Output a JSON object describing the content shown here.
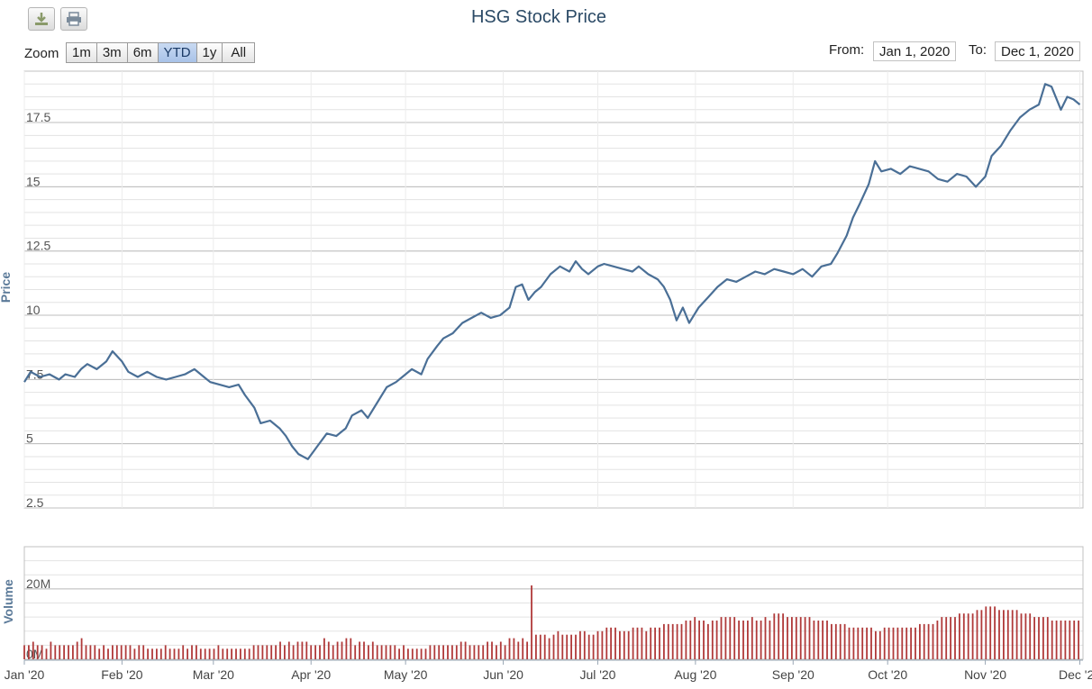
{
  "chart_title": "HSG Stock Price",
  "toolbar": {
    "download_icon": "download-icon",
    "print_icon": "print-icon"
  },
  "zoom": {
    "label": "Zoom",
    "buttons": [
      "1m",
      "3m",
      "6m",
      "YTD",
      "1y",
      "All"
    ],
    "active": "YTD"
  },
  "range": {
    "from_label": "From:",
    "from_value": "Jan 1, 2020",
    "to_label": "To:",
    "to_value": "Dec 1, 2020"
  },
  "colors": {
    "line": "#4a6f96",
    "bars": "#b03a3a",
    "grid": "#c8c8c8",
    "axis_title": "#5b7a99"
  },
  "chart_data": [
    {
      "type": "line",
      "ylabel": "Price",
      "ylim": [
        2.5,
        19.5
      ],
      "yticks": [
        2.5,
        5,
        7.5,
        10,
        12.5,
        15,
        17.5
      ],
      "ytick_labels": [
        "2.5",
        "5",
        "7.5",
        "10",
        "12.5",
        "15",
        "17.5"
      ],
      "xlabels": [
        "Jan '20",
        "Feb '20",
        "Mar '20",
        "Apr '20",
        "May '20",
        "Jun '20",
        "Jul '20",
        "Aug '20",
        "Sep '20",
        "Oct '20",
        "Nov '20",
        "Dec '20"
      ],
      "xlim": [
        "2020-01-01",
        "2020-12-02"
      ],
      "grid": true,
      "series": [
        {
          "points": [
            [
              "2020-01-01",
              7.4
            ],
            [
              "2020-01-03",
              7.8
            ],
            [
              "2020-01-06",
              7.6
            ],
            [
              "2020-01-09",
              7.7
            ],
            [
              "2020-01-12",
              7.5
            ],
            [
              "2020-01-14",
              7.7
            ],
            [
              "2020-01-17",
              7.6
            ],
            [
              "2020-01-19",
              7.9
            ],
            [
              "2020-01-21",
              8.1
            ],
            [
              "2020-01-24",
              7.9
            ],
            [
              "2020-01-27",
              8.2
            ],
            [
              "2020-01-29",
              8.6
            ],
            [
              "2020-02-01",
              8.2
            ],
            [
              "2020-02-03",
              7.8
            ],
            [
              "2020-02-06",
              7.6
            ],
            [
              "2020-02-09",
              7.8
            ],
            [
              "2020-02-12",
              7.6
            ],
            [
              "2020-02-15",
              7.5
            ],
            [
              "2020-02-18",
              7.6
            ],
            [
              "2020-02-21",
              7.7
            ],
            [
              "2020-02-24",
              7.9
            ],
            [
              "2020-02-27",
              7.6
            ],
            [
              "2020-02-29",
              7.4
            ],
            [
              "2020-03-03",
              7.3
            ],
            [
              "2020-03-06",
              7.2
            ],
            [
              "2020-03-09",
              7.3
            ],
            [
              "2020-03-11",
              6.9
            ],
            [
              "2020-03-14",
              6.4
            ],
            [
              "2020-03-16",
              5.8
            ],
            [
              "2020-03-19",
              5.9
            ],
            [
              "2020-03-22",
              5.6
            ],
            [
              "2020-03-24",
              5.3
            ],
            [
              "2020-03-26",
              4.9
            ],
            [
              "2020-03-28",
              4.6
            ],
            [
              "2020-03-31",
              4.4
            ],
            [
              "2020-04-03",
              4.9
            ],
            [
              "2020-04-06",
              5.4
            ],
            [
              "2020-04-09",
              5.3
            ],
            [
              "2020-04-12",
              5.6
            ],
            [
              "2020-04-14",
              6.1
            ],
            [
              "2020-04-17",
              6.3
            ],
            [
              "2020-04-19",
              6.0
            ],
            [
              "2020-04-22",
              6.6
            ],
            [
              "2020-04-25",
              7.2
            ],
            [
              "2020-04-28",
              7.4
            ],
            [
              "2020-04-30",
              7.6
            ],
            [
              "2020-05-03",
              7.9
            ],
            [
              "2020-05-06",
              7.7
            ],
            [
              "2020-05-08",
              8.3
            ],
            [
              "2020-05-11",
              8.8
            ],
            [
              "2020-05-13",
              9.1
            ],
            [
              "2020-05-16",
              9.3
            ],
            [
              "2020-05-19",
              9.7
            ],
            [
              "2020-05-22",
              9.9
            ],
            [
              "2020-05-25",
              10.1
            ],
            [
              "2020-05-28",
              9.9
            ],
            [
              "2020-05-31",
              10.0
            ],
            [
              "2020-06-03",
              10.3
            ],
            [
              "2020-06-05",
              11.1
            ],
            [
              "2020-06-07",
              11.2
            ],
            [
              "2020-06-09",
              10.6
            ],
            [
              "2020-06-11",
              10.9
            ],
            [
              "2020-06-13",
              11.1
            ],
            [
              "2020-06-16",
              11.6
            ],
            [
              "2020-06-19",
              11.9
            ],
            [
              "2020-06-22",
              11.7
            ],
            [
              "2020-06-24",
              12.1
            ],
            [
              "2020-06-26",
              11.8
            ],
            [
              "2020-06-28",
              11.6
            ],
            [
              "2020-07-01",
              11.9
            ],
            [
              "2020-07-03",
              12.0
            ],
            [
              "2020-07-06",
              11.9
            ],
            [
              "2020-07-09",
              11.8
            ],
            [
              "2020-07-12",
              11.7
            ],
            [
              "2020-07-14",
              11.9
            ],
            [
              "2020-07-17",
              11.6
            ],
            [
              "2020-07-20",
              11.4
            ],
            [
              "2020-07-22",
              11.1
            ],
            [
              "2020-07-24",
              10.6
            ],
            [
              "2020-07-26",
              9.8
            ],
            [
              "2020-07-28",
              10.3
            ],
            [
              "2020-07-30",
              9.7
            ],
            [
              "2020-08-02",
              10.3
            ],
            [
              "2020-08-05",
              10.7
            ],
            [
              "2020-08-08",
              11.1
            ],
            [
              "2020-08-11",
              11.4
            ],
            [
              "2020-08-14",
              11.3
            ],
            [
              "2020-08-17",
              11.5
            ],
            [
              "2020-08-20",
              11.7
            ],
            [
              "2020-08-23",
              11.6
            ],
            [
              "2020-08-26",
              11.8
            ],
            [
              "2020-08-29",
              11.7
            ],
            [
              "2020-09-01",
              11.6
            ],
            [
              "2020-09-04",
              11.8
            ],
            [
              "2020-09-07",
              11.5
            ],
            [
              "2020-09-10",
              11.9
            ],
            [
              "2020-09-13",
              12.0
            ],
            [
              "2020-09-15",
              12.4
            ],
            [
              "2020-09-18",
              13.1
            ],
            [
              "2020-09-20",
              13.8
            ],
            [
              "2020-09-22",
              14.3
            ],
            [
              "2020-09-25",
              15.1
            ],
            [
              "2020-09-27",
              16.0
            ],
            [
              "2020-09-29",
              15.6
            ],
            [
              "2020-10-02",
              15.7
            ],
            [
              "2020-10-05",
              15.5
            ],
            [
              "2020-10-08",
              15.8
            ],
            [
              "2020-10-11",
              15.7
            ],
            [
              "2020-10-14",
              15.6
            ],
            [
              "2020-10-17",
              15.3
            ],
            [
              "2020-10-20",
              15.2
            ],
            [
              "2020-10-23",
              15.5
            ],
            [
              "2020-10-26",
              15.4
            ],
            [
              "2020-10-29",
              15.0
            ],
            [
              "2020-11-01",
              15.4
            ],
            [
              "2020-11-03",
              16.2
            ],
            [
              "2020-11-06",
              16.6
            ],
            [
              "2020-11-09",
              17.2
            ],
            [
              "2020-11-12",
              17.7
            ],
            [
              "2020-11-15",
              18.0
            ],
            [
              "2020-11-18",
              18.2
            ],
            [
              "2020-11-20",
              19.0
            ],
            [
              "2020-11-22",
              18.9
            ],
            [
              "2020-11-25",
              18.0
            ],
            [
              "2020-11-27",
              18.5
            ],
            [
              "2020-11-29",
              18.4
            ],
            [
              "2020-12-01",
              18.2
            ]
          ]
        }
      ]
    },
    {
      "type": "bar",
      "ylabel": "Volume",
      "ylim": [
        0,
        32
      ],
      "ytick_labels": [
        "0M",
        "20M"
      ],
      "yticks": [
        0,
        20
      ],
      "value_unit": "M",
      "x_start": "2020-01-01",
      "x_step_days": 1.4,
      "values": [
        4,
        4,
        5,
        4,
        4,
        3,
        5,
        4,
        4,
        4,
        4,
        4,
        5,
        6,
        4,
        4,
        4,
        3,
        4,
        3,
        4,
        4,
        4,
        4,
        4,
        3,
        4,
        4,
        3,
        3,
        3,
        3,
        4,
        3,
        3,
        3,
        4,
        3,
        4,
        4,
        3,
        3,
        3,
        3,
        4,
        3,
        3,
        3,
        3,
        3,
        3,
        3,
        4,
        4,
        4,
        4,
        4,
        4,
        5,
        4,
        5,
        4,
        5,
        5,
        5,
        4,
        4,
        4,
        6,
        5,
        4,
        5,
        5,
        6,
        6,
        4,
        5,
        5,
        4,
        5,
        4,
        4,
        4,
        4,
        4,
        3,
        4,
        3,
        3,
        3,
        3,
        3,
        4,
        4,
        4,
        4,
        4,
        4,
        4,
        5,
        5,
        4,
        4,
        4,
        4,
        5,
        5,
        4,
        5,
        4,
        6,
        6,
        5,
        6,
        5,
        21,
        7,
        7,
        7,
        6,
        7,
        8,
        7,
        7,
        7,
        7,
        8,
        8,
        7,
        7,
        8,
        8,
        9,
        9,
        9,
        8,
        8,
        8,
        9,
        9,
        9,
        8,
        9,
        9,
        9,
        10,
        10,
        10,
        10,
        10,
        11,
        11,
        12,
        11,
        11,
        10,
        11,
        11,
        12,
        12,
        12,
        12,
        11,
        11,
        11,
        12,
        11,
        11,
        12,
        11,
        13,
        13,
        13,
        12,
        12,
        12,
        12,
        12,
        12,
        11,
        11,
        11,
        11,
        10,
        10,
        10,
        10,
        9,
        9,
        9,
        9,
        9,
        9,
        8,
        8,
        9,
        9,
        9,
        9,
        9,
        9,
        9,
        9,
        10,
        10,
        10,
        10,
        11,
        12,
        12,
        12,
        12,
        13,
        13,
        13,
        13,
        14,
        14,
        15,
        15,
        15,
        14,
        14,
        14,
        14,
        14,
        13,
        13,
        13,
        12,
        12,
        12,
        12,
        11,
        11,
        11,
        11,
        11,
        11,
        11,
        11,
        11,
        11,
        11,
        12,
        12,
        12,
        12,
        12,
        13,
        13,
        13,
        13,
        14,
        14,
        14,
        15,
        15,
        15,
        15,
        15,
        14,
        14,
        14,
        13,
        13,
        12,
        12,
        12,
        11,
        11,
        11,
        10,
        10,
        10,
        10,
        10,
        10,
        10,
        11,
        11,
        11,
        12,
        12,
        12,
        13,
        13,
        13,
        14,
        14,
        14,
        14,
        14,
        15,
        15,
        16,
        16,
        15,
        15,
        15,
        14,
        14,
        14,
        13,
        13,
        13,
        12,
        12,
        12,
        12,
        13,
        13,
        14,
        14,
        15,
        15,
        16,
        16,
        17,
        17,
        18,
        19,
        18,
        18,
        17,
        16,
        15,
        14,
        13,
        12
      ]
    }
  ]
}
